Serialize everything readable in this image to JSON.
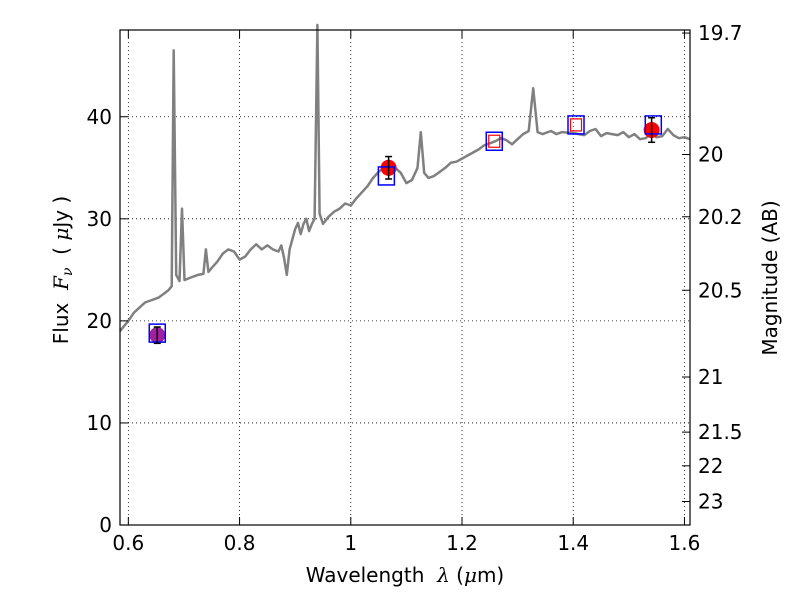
{
  "chart_data": {
    "type": "line",
    "xlabel": {
      "prefix": "Wavelength  ",
      "symbol": "λ",
      "unit_open": " (",
      "unit_mu": "μ",
      "unit_rest": "m)"
    },
    "ylabel": {
      "prefix": "Flux  ",
      "symbol": "F",
      "subscript": "ν",
      "unit_open": "  ( ",
      "unit_mu": "μ",
      "unit_rest": "Jy )"
    },
    "y2label": "Magnitude (AB)",
    "xlim": [
      0.585,
      1.61
    ],
    "ylim": [
      0,
      48.5
    ],
    "x_ticks": [
      0.6,
      0.8,
      1.0,
      1.2,
      1.4,
      1.6
    ],
    "x_tick_labels": [
      "0.6",
      "0.8",
      "1",
      "1.2",
      "1.4",
      "1.6"
    ],
    "y_ticks": [
      0,
      10,
      20,
      30,
      40
    ],
    "y_tick_labels": [
      "0",
      "10",
      "20",
      "30",
      "40"
    ],
    "y2_ticks": [
      {
        "label": "19.7",
        "flux": 48.2
      },
      {
        "label": "20",
        "flux": 36.3
      },
      {
        "label": "20.2",
        "flux": 30.2
      },
      {
        "label": "20.5",
        "flux": 23.0
      },
      {
        "label": "21",
        "flux": 14.5
      },
      {
        "label": "21.5",
        "flux": 9.1
      },
      {
        "label": "22",
        "flux": 5.8
      },
      {
        "label": "23",
        "flux": 2.3
      }
    ],
    "grid": true,
    "series": [
      {
        "style": "line",
        "color": "#808080",
        "points": [
          [
            0.585,
            19.0
          ],
          [
            0.6,
            20.0
          ],
          [
            0.61,
            20.8
          ],
          [
            0.62,
            21.3
          ],
          [
            0.63,
            21.8
          ],
          [
            0.64,
            22.0
          ],
          [
            0.655,
            22.3
          ],
          [
            0.665,
            22.7
          ],
          [
            0.672,
            23.0
          ],
          [
            0.678,
            23.4
          ],
          [
            0.6815,
            46.5
          ],
          [
            0.686,
            24.5
          ],
          [
            0.692,
            23.9
          ],
          [
            0.6965,
            31.0
          ],
          [
            0.701,
            24.0
          ],
          [
            0.71,
            24.2
          ],
          [
            0.725,
            24.5
          ],
          [
            0.735,
            24.6
          ],
          [
            0.7395,
            27.0
          ],
          [
            0.744,
            24.8
          ],
          [
            0.75,
            25.2
          ],
          [
            0.76,
            25.8
          ],
          [
            0.77,
            26.6
          ],
          [
            0.78,
            27.0
          ],
          [
            0.79,
            26.8
          ],
          [
            0.8,
            26.0
          ],
          [
            0.81,
            26.3
          ],
          [
            0.82,
            27.0
          ],
          [
            0.83,
            27.5
          ],
          [
            0.84,
            27.0
          ],
          [
            0.85,
            27.4
          ],
          [
            0.86,
            27.0
          ],
          [
            0.87,
            26.8
          ],
          [
            0.875,
            27.4
          ],
          [
            0.88,
            26.2
          ],
          [
            0.885,
            24.5
          ],
          [
            0.89,
            27.0
          ],
          [
            0.895,
            28.0
          ],
          [
            0.9,
            29.0
          ],
          [
            0.905,
            29.6
          ],
          [
            0.91,
            28.5
          ],
          [
            0.915,
            29.5
          ],
          [
            0.92,
            30.0
          ],
          [
            0.925,
            28.8
          ],
          [
            0.93,
            29.5
          ],
          [
            0.935,
            30.0
          ],
          [
            0.94,
            49.0
          ],
          [
            0.944,
            30.5
          ],
          [
            0.95,
            29.5
          ],
          [
            0.96,
            30.2
          ],
          [
            0.97,
            30.7
          ],
          [
            0.98,
            31.0
          ],
          [
            0.99,
            31.5
          ],
          [
            1.0,
            31.3
          ],
          [
            1.01,
            32.0
          ],
          [
            1.02,
            32.6
          ],
          [
            1.03,
            33.2
          ],
          [
            1.04,
            34.0
          ],
          [
            1.05,
            34.6
          ],
          [
            1.06,
            35.0
          ],
          [
            1.07,
            35.3
          ],
          [
            1.08,
            35.0
          ],
          [
            1.09,
            34.5
          ],
          [
            1.1,
            33.5
          ],
          [
            1.11,
            33.8
          ],
          [
            1.12,
            35.0
          ],
          [
            1.126,
            38.5
          ],
          [
            1.132,
            34.5
          ],
          [
            1.14,
            34.0
          ],
          [
            1.15,
            34.2
          ],
          [
            1.16,
            34.6
          ],
          [
            1.17,
            35.0
          ],
          [
            1.18,
            35.5
          ],
          [
            1.19,
            35.6
          ],
          [
            1.2,
            35.9
          ],
          [
            1.21,
            36.2
          ],
          [
            1.22,
            36.5
          ],
          [
            1.23,
            36.8
          ],
          [
            1.24,
            37.2
          ],
          [
            1.25,
            37.4
          ],
          [
            1.26,
            37.6
          ],
          [
            1.27,
            37.9
          ],
          [
            1.28,
            37.7
          ],
          [
            1.29,
            37.3
          ],
          [
            1.3,
            37.8
          ],
          [
            1.31,
            38.3
          ],
          [
            1.32,
            38.6
          ],
          [
            1.328,
            42.8
          ],
          [
            1.336,
            38.5
          ],
          [
            1.345,
            38.3
          ],
          [
            1.36,
            38.6
          ],
          [
            1.37,
            38.3
          ],
          [
            1.38,
            38.5
          ],
          [
            1.4,
            38.4
          ],
          [
            1.42,
            38.2
          ],
          [
            1.43,
            38.6
          ],
          [
            1.44,
            38.8
          ],
          [
            1.45,
            38.1
          ],
          [
            1.46,
            38.4
          ],
          [
            1.48,
            38.2
          ],
          [
            1.49,
            38.5
          ],
          [
            1.5,
            38.0
          ],
          [
            1.51,
            38.3
          ],
          [
            1.52,
            37.8
          ],
          [
            1.53,
            37.9
          ],
          [
            1.54,
            38.3
          ],
          [
            1.55,
            38.0
          ],
          [
            1.56,
            38.1
          ],
          [
            1.57,
            38.8
          ],
          [
            1.58,
            38.2
          ],
          [
            1.59,
            37.9
          ],
          [
            1.6,
            38.0
          ],
          [
            1.61,
            37.8
          ]
        ]
      }
    ],
    "observed_points": [
      {
        "x": 0.652,
        "y": 18.6,
        "err": 0.8,
        "color": "#a020a0"
      },
      {
        "x": 1.068,
        "y": 35.0,
        "err": 1.1,
        "color": "#ff0000"
      },
      {
        "x": 1.541,
        "y": 38.7,
        "err": 1.2,
        "color": "#ff0000"
      }
    ],
    "model_boxes": [
      {
        "x": 0.652,
        "y": 18.8,
        "color": "#0000ff"
      },
      {
        "x": 1.064,
        "y": 34.2,
        "color": "#0000ff"
      },
      {
        "x": 1.258,
        "y": 37.6,
        "color": "#0000ff"
      },
      {
        "x": 1.405,
        "y": 39.2,
        "color": "#0000ff"
      },
      {
        "x": 1.544,
        "y": 39.2,
        "color": "#0000ff"
      }
    ],
    "model_inner_boxes": [
      {
        "x": 1.258,
        "y": 37.6,
        "color": "#ff0000"
      },
      {
        "x": 1.405,
        "y": 39.2,
        "color": "#ff0000"
      }
    ]
  }
}
